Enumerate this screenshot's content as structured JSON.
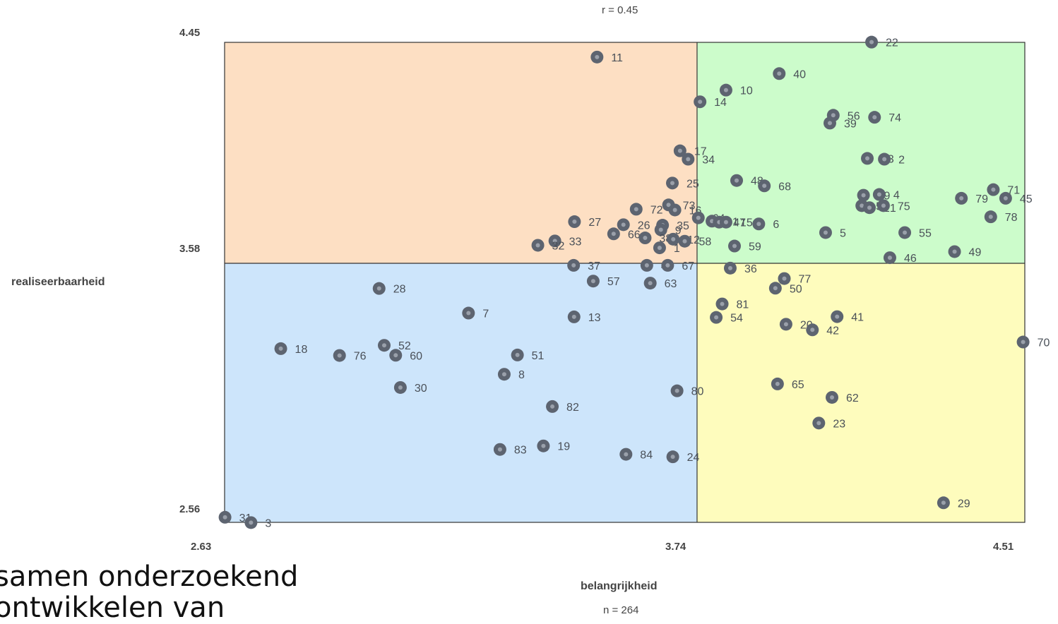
{
  "background_text": [
    "samen onderzoekend",
    "ontwikkelen van"
  ],
  "chart_data": {
    "type": "scatter",
    "title": "r = 0.45",
    "xlabel": "belangrijkheid",
    "ylabel": "realiseerbaarheid",
    "footer": "n = 264",
    "xlim": [
      2.63,
      4.51
    ],
    "ylim": [
      2.56,
      4.45
    ],
    "x_ticks": [
      "2.63",
      "3.74",
      "4.51"
    ],
    "y_ticks": [
      "4.45",
      "3.58",
      "2.56"
    ],
    "x_split": 3.74,
    "y_split": 3.58,
    "quadrant_colors": {
      "top_left": "#fddfc3",
      "top_right": "#ccfccb",
      "bottom_left": "#cde5fb",
      "bottom_right": "#fefcbd"
    },
    "marker_color": "#5d6470",
    "grid": false,
    "points": [
      {
        "label": "11",
        "x": 3.505,
        "y": 4.392
      },
      {
        "label": "22",
        "x": 4.15,
        "y": 4.451
      },
      {
        "label": "40",
        "x": 3.933,
        "y": 4.327
      },
      {
        "label": "10",
        "x": 3.808,
        "y": 4.262
      },
      {
        "label": "14",
        "x": 3.747,
        "y": 4.216
      },
      {
        "label": "56",
        "x": 4.06,
        "y": 4.163
      },
      {
        "label": "74",
        "x": 4.157,
        "y": 4.155
      },
      {
        "label": "39",
        "x": 4.052,
        "y": 4.132
      },
      {
        "label": "17",
        "x": 3.7,
        "y": 4.023
      },
      {
        "label": "34",
        "x": 3.719,
        "y": 3.99
      },
      {
        "label": "43",
        "x": 4.14,
        "y": 3.993
      },
      {
        "label": "2",
        "x": 4.18,
        "y": 3.99
      },
      {
        "label": "25",
        "x": 3.682,
        "y": 3.896
      },
      {
        "label": "48",
        "x": 3.833,
        "y": 3.906
      },
      {
        "label": "68",
        "x": 3.898,
        "y": 3.885
      },
      {
        "label": "71",
        "x": 4.436,
        "y": 3.87
      },
      {
        "label": "69",
        "x": 4.131,
        "y": 3.848
      },
      {
        "label": "4",
        "x": 4.168,
        "y": 3.851
      },
      {
        "label": "79",
        "x": 4.361,
        "y": 3.836
      },
      {
        "label": "45",
        "x": 4.465,
        "y": 3.836
      },
      {
        "label": "73",
        "x": 3.673,
        "y": 3.81
      },
      {
        "label": "72",
        "x": 3.597,
        "y": 3.793
      },
      {
        "label": "16",
        "x": 3.688,
        "y": 3.79
      },
      {
        "label": "53",
        "x": 4.127,
        "y": 3.807
      },
      {
        "label": "21",
        "x": 4.145,
        "y": 3.799
      },
      {
        "label": "75",
        "x": 4.178,
        "y": 3.807
      },
      {
        "label": "78",
        "x": 4.43,
        "y": 3.763
      },
      {
        "label": "64",
        "x": 3.743,
        "y": 3.759
      },
      {
        "label": "61",
        "x": 3.775,
        "y": 3.746
      },
      {
        "label": "47",
        "x": 3.792,
        "y": 3.742
      },
      {
        "label": "15",
        "x": 3.808,
        "y": 3.742
      },
      {
        "label": "6",
        "x": 3.885,
        "y": 3.735
      },
      {
        "label": "27",
        "x": 3.452,
        "y": 3.744
      },
      {
        "label": "26",
        "x": 3.567,
        "y": 3.732
      },
      {
        "label": "35",
        "x": 3.659,
        "y": 3.73
      },
      {
        "label": "9",
        "x": 3.655,
        "y": 3.712
      },
      {
        "label": "66",
        "x": 3.544,
        "y": 3.696
      },
      {
        "label": "38",
        "x": 3.618,
        "y": 3.68
      },
      {
        "label": "12",
        "x": 3.684,
        "y": 3.675
      },
      {
        "label": "58",
        "x": 3.711,
        "y": 3.667
      },
      {
        "label": "5",
        "x": 4.042,
        "y": 3.701
      },
      {
        "label": "55",
        "x": 4.228,
        "y": 3.701
      },
      {
        "label": "33",
        "x": 3.406,
        "y": 3.668
      },
      {
        "label": "32",
        "x": 3.366,
        "y": 3.651
      },
      {
        "label": "1",
        "x": 3.652,
        "y": 3.641
      },
      {
        "label": "59",
        "x": 3.828,
        "y": 3.648
      },
      {
        "label": "49",
        "x": 4.345,
        "y": 3.626
      },
      {
        "label": "46",
        "x": 4.193,
        "y": 3.602
      },
      {
        "label": "37",
        "x": 3.45,
        "y": 3.572
      },
      {
        "label": "44",
        "x": 3.622,
        "y": 3.572
      },
      {
        "label": "67",
        "x": 3.671,
        "y": 3.572
      },
      {
        "label": "36",
        "x": 3.818,
        "y": 3.561
      },
      {
        "label": "77",
        "x": 3.945,
        "y": 3.52
      },
      {
        "label": "50",
        "x": 3.924,
        "y": 3.482
      },
      {
        "label": "57",
        "x": 3.496,
        "y": 3.51
      },
      {
        "label": "63",
        "x": 3.63,
        "y": 3.502
      },
      {
        "label": "28",
        "x": 2.993,
        "y": 3.481
      },
      {
        "label": "81",
        "x": 3.799,
        "y": 3.42
      },
      {
        "label": "7",
        "x": 3.203,
        "y": 3.384
      },
      {
        "label": "13",
        "x": 3.451,
        "y": 3.369
      },
      {
        "label": "54",
        "x": 3.785,
        "y": 3.367
      },
      {
        "label": "41",
        "x": 4.069,
        "y": 3.37
      },
      {
        "label": "20",
        "x": 3.949,
        "y": 3.34
      },
      {
        "label": "42",
        "x": 4.011,
        "y": 3.318
      },
      {
        "label": "70",
        "x": 4.506,
        "y": 3.27
      },
      {
        "label": "18",
        "x": 2.762,
        "y": 3.244
      },
      {
        "label": "52",
        "x": 3.005,
        "y": 3.257
      },
      {
        "label": "76",
        "x": 2.9,
        "y": 3.217
      },
      {
        "label": "60",
        "x": 3.032,
        "y": 3.218
      },
      {
        "label": "51",
        "x": 3.318,
        "y": 3.219
      },
      {
        "label": "8",
        "x": 3.287,
        "y": 3.143
      },
      {
        "label": "30",
        "x": 3.043,
        "y": 3.091
      },
      {
        "label": "65",
        "x": 3.929,
        "y": 3.105
      },
      {
        "label": "80",
        "x": 3.693,
        "y": 3.078
      },
      {
        "label": "62",
        "x": 4.057,
        "y": 3.052
      },
      {
        "label": "82",
        "x": 3.4,
        "y": 3.016
      },
      {
        "label": "23",
        "x": 4.026,
        "y": 2.951
      },
      {
        "label": "83",
        "x": 3.277,
        "y": 2.847
      },
      {
        "label": "19",
        "x": 3.379,
        "y": 2.861
      },
      {
        "label": "84",
        "x": 3.573,
        "y": 2.828
      },
      {
        "label": "24",
        "x": 3.683,
        "y": 2.818
      },
      {
        "label": "29",
        "x": 4.319,
        "y": 2.637
      },
      {
        "label": "31",
        "x": 2.631,
        "y": 2.58
      },
      {
        "label": "3",
        "x": 2.692,
        "y": 2.559
      }
    ]
  }
}
